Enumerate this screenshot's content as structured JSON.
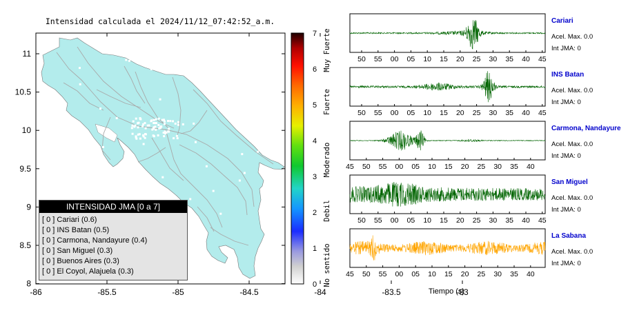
{
  "map": {
    "title": "Intensidad calculada el 2024/11/12_07:42:52_a.m.",
    "x_ticks": [
      "-86",
      "-85.5",
      "-85",
      "-84.5",
      "-84",
      "-83.5",
      "-83"
    ],
    "y_ticks": [
      "11",
      "10.5",
      "10",
      "9.5",
      "9",
      "8.5",
      "8"
    ],
    "land_color": "#b3ecec",
    "road_color": "#a8a8a8"
  },
  "colorbar": {
    "ticks": [
      "0",
      "1",
      "2",
      "3",
      "4",
      "5",
      "6",
      "7"
    ],
    "categories": [
      "No sentido",
      "Debil",
      "Moderado",
      "Fuerte",
      "Muy Fuerte"
    ]
  },
  "legend": {
    "title": "INTENSIDAD JMA [0 a 7]",
    "items": [
      "[ 0 ]  Cariari (0.6)",
      "[ 0 ]  INS Batan (0.5)",
      "[ 0 ]  Carmona, Nandayure (0.4)",
      "[ 0 ]  San Miguel (0.3)",
      "[ 0 ]  Buenos Aires (0.3)",
      "[ 0 ]  El Coyol, Alajuela (0.3)"
    ]
  },
  "stations": [
    {
      "name": "Cariari",
      "accel_label": "Acel. Max.",
      "accel": "0.0",
      "jma_label": "Int JMA:",
      "jma": "0",
      "color": "#006400",
      "ticks": [
        "50",
        "55",
        "00",
        "05",
        "10",
        "15",
        "20",
        "25",
        "30",
        "35",
        "40",
        "45"
      ]
    },
    {
      "name": "INS Batan",
      "accel_label": "Acel. Max.",
      "accel": "0.0",
      "jma_label": "Int JMA:",
      "jma": "0",
      "color": "#006400",
      "ticks": [
        "50",
        "55",
        "00",
        "05",
        "10",
        "15",
        "20",
        "25",
        "30",
        "35",
        "40",
        "45"
      ]
    },
    {
      "name": "Carmona, Nandayure",
      "accel_label": "Acel. Max.",
      "accel": "0.0",
      "jma_label": "Int JMA:",
      "jma": "0",
      "color": "#006400",
      "ticks": [
        "45",
        "50",
        "55",
        "00",
        "05",
        "10",
        "15",
        "20",
        "25",
        "30",
        "35",
        "40"
      ]
    },
    {
      "name": "San Miguel",
      "accel_label": "Acel. Max.",
      "accel": "0.0",
      "jma_label": "Int JMA:",
      "jma": "0",
      "color": "#006400",
      "ticks": [
        "50",
        "55",
        "00",
        "05",
        "10",
        "15",
        "20",
        "25",
        "30",
        "35",
        "40",
        "45"
      ]
    },
    {
      "name": "La Sabana",
      "accel_label": "Acel. Max.",
      "accel": "0.0",
      "jma_label": "Int JMA:",
      "jma": "0",
      "color": "#ffa500",
      "ticks": [
        "45",
        "50",
        "55",
        "00",
        "05",
        "10",
        "15",
        "20",
        "25",
        "30",
        "35",
        "40"
      ]
    }
  ],
  "time_axis_label": "Tiempo (s)"
}
